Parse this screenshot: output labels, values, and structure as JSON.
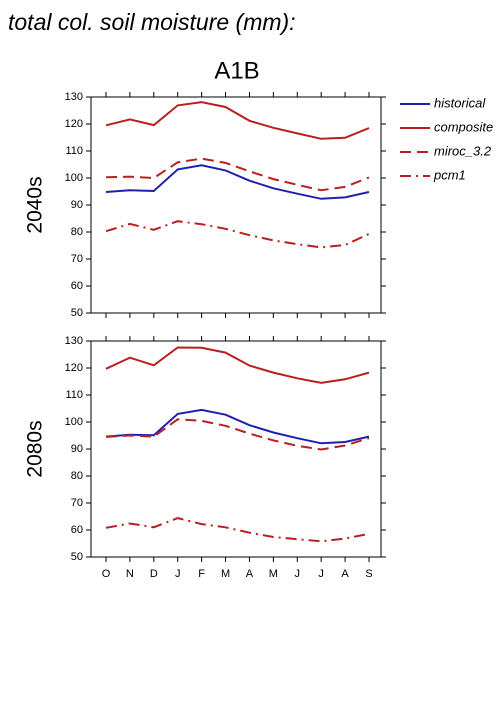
{
  "title": "total col. soil moisture (mm):",
  "chart_data": [
    {
      "type": "line",
      "title": "A1B",
      "label": "2040s",
      "categories": [
        "O",
        "N",
        "D",
        "J",
        "F",
        "M",
        "A",
        "M",
        "J",
        "J",
        "A",
        "S"
      ],
      "ylim": [
        50,
        130
      ],
      "yticks": [
        50,
        60,
        70,
        80,
        90,
        100,
        110,
        120,
        130
      ],
      "series": [
        {
          "name": "historical",
          "color": "#2020b0",
          "linestyle": "solid",
          "values": [
            94.8,
            95.5,
            95.2,
            103.2,
            104.7,
            102.8,
            99.0,
            96.2,
            94.2,
            92.3,
            92.8,
            94.8
          ]
        },
        {
          "name": "composite",
          "color": "#b82020",
          "linestyle": "solid",
          "values": [
            119.5,
            121.7,
            119.6,
            126.9,
            128.1,
            126.3,
            121.2,
            118.6,
            116.5,
            114.5,
            114.9,
            118.5
          ]
        },
        {
          "name": "miroc_3.2",
          "color": "#b82020",
          "linestyle": "dashed",
          "values": [
            100.3,
            100.5,
            100.0,
            105.8,
            107.2,
            105.6,
            102.5,
            99.6,
            97.5,
            95.5,
            96.7,
            100.2
          ]
        },
        {
          "name": "pcm1",
          "color": "#b82020",
          "linestyle": "dashdot",
          "values": [
            80.3,
            83.0,
            80.8,
            84.0,
            82.9,
            81.2,
            78.8,
            76.9,
            75.5,
            74.3,
            75.2,
            79.3
          ]
        }
      ]
    },
    {
      "type": "line",
      "label": "2080s",
      "categories": [
        "O",
        "N",
        "D",
        "J",
        "F",
        "M",
        "A",
        "M",
        "J",
        "J",
        "A",
        "S"
      ],
      "ylim": [
        50,
        130
      ],
      "yticks": [
        50,
        60,
        70,
        80,
        90,
        100,
        110,
        120,
        130
      ],
      "series": [
        {
          "name": "historical",
          "color": "#2020b0",
          "linestyle": "solid",
          "values": [
            94.6,
            95.3,
            95.1,
            103.0,
            104.5,
            102.7,
            98.8,
            96.1,
            94.0,
            92.1,
            92.6,
            94.6
          ]
        },
        {
          "name": "composite",
          "color": "#b82020",
          "linestyle": "solid",
          "values": [
            119.7,
            123.8,
            121.0,
            127.6,
            127.5,
            125.7,
            120.9,
            118.3,
            116.2,
            114.5,
            115.8,
            118.3
          ]
        },
        {
          "name": "miroc_3.2",
          "color": "#b82020",
          "linestyle": "dashed",
          "values": [
            94.5,
            95.0,
            94.6,
            101.0,
            100.4,
            98.6,
            95.7,
            93.2,
            91.2,
            89.8,
            91.3,
            94.0
          ]
        },
        {
          "name": "pcm1",
          "color": "#b82020",
          "linestyle": "dashdot",
          "values": [
            60.8,
            62.4,
            61.0,
            64.4,
            62.2,
            61.0,
            59.0,
            57.4,
            56.6,
            55.8,
            56.8,
            58.6
          ]
        }
      ]
    }
  ]
}
